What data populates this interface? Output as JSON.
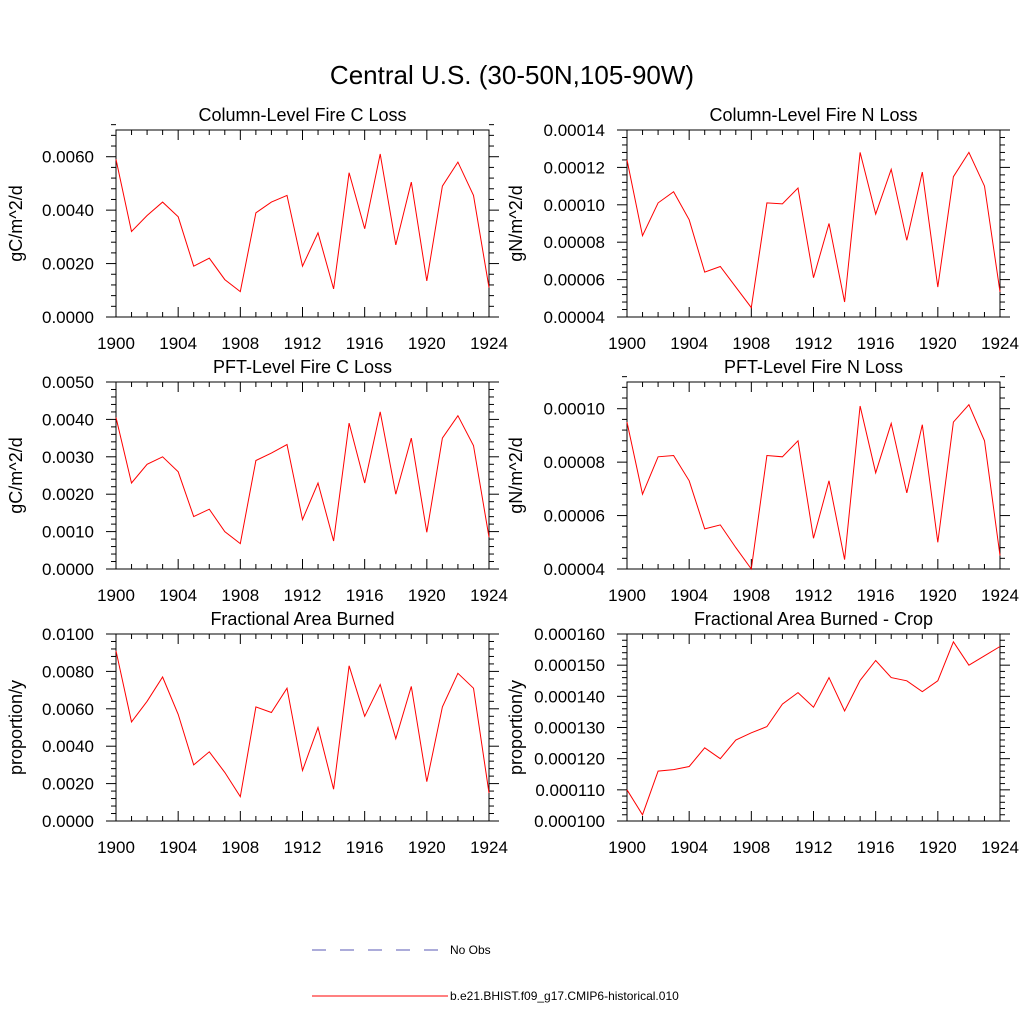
{
  "figure": {
    "title": "Central U.S. (30-50N,105-90W)",
    "line_color": "#ff0000",
    "obs_color": "#5a5ab4"
  },
  "legend": {
    "placement": "bottom-center",
    "items": [
      {
        "label": "No Obs",
        "style": "dashed",
        "color": "#5a5ab4"
      },
      {
        "label": "b.e21.BHIST.f09_g17.CMIP6-historical.010",
        "style": "solid",
        "color": "#ff0000"
      }
    ]
  },
  "chart_data": [
    {
      "type": "line",
      "title": "Column-Level Fire C Loss",
      "ylabel": "gC/m^2/d",
      "xlabel": "",
      "xlim": [
        1900,
        1924
      ],
      "ylim": [
        0,
        0.007
      ],
      "xticks": [
        "1900",
        "1904",
        "1908",
        "1912",
        "1916",
        "1920",
        "1924"
      ],
      "yticks": [
        "0.0000",
        "0.0020",
        "0.0040",
        "0.0060"
      ],
      "x": [
        1900,
        1901,
        1902,
        1903,
        1904,
        1905,
        1906,
        1907,
        1908,
        1909,
        1910,
        1911,
        1912,
        1913,
        1914,
        1915,
        1916,
        1917,
        1918,
        1919,
        1920,
        1921,
        1922,
        1923,
        1924
      ],
      "series": [
        {
          "name": "b.e21.BHIST.f09_g17.CMIP6-historical.010",
          "values": [
            0.0059,
            0.0032,
            0.0038,
            0.0043,
            0.00375,
            0.0019,
            0.0022,
            0.0014,
            0.00095,
            0.0039,
            0.0043,
            0.00455,
            0.0019,
            0.00315,
            0.00105,
            0.0054,
            0.0033,
            0.0061,
            0.0027,
            0.00505,
            0.00135,
            0.0049,
            0.0058,
            0.00455,
            0.0011
          ]
        }
      ]
    },
    {
      "type": "line",
      "title": "Column-Level Fire N Loss",
      "ylabel": "gN/m^2/d",
      "xlabel": "",
      "xlim": [
        1900,
        1924
      ],
      "ylim": [
        4e-05,
        0.00014
      ],
      "xticks": [
        "1900",
        "1904",
        "1908",
        "1912",
        "1916",
        "1920",
        "1924"
      ],
      "yticks": [
        "0.00004",
        "0.00006",
        "0.00008",
        "0.00010",
        "0.00012",
        "0.00014"
      ],
      "x": [
        1900,
        1901,
        1902,
        1903,
        1904,
        1905,
        1906,
        1907,
        1908,
        1909,
        1910,
        1911,
        1912,
        1913,
        1914,
        1915,
        1916,
        1917,
        1918,
        1919,
        1920,
        1921,
        1922,
        1923,
        1924
      ],
      "series": [
        {
          "name": "b.e21.BHIST.f09_g17.CMIP6-historical.010",
          "values": [
            0.000124,
            8.35e-05,
            0.000101,
            0.000107,
            9.2e-05,
            6.4e-05,
            6.7e-05,
            5.6e-05,
            4.5e-05,
            0.000101,
            0.0001005,
            0.000109,
            6.1e-05,
            9e-05,
            4.8e-05,
            0.000128,
            9.5e-05,
            0.000119,
            8.1e-05,
            0.0001175,
            5.6e-05,
            0.000115,
            0.000128,
            0.00011,
            5.35e-05
          ]
        }
      ]
    },
    {
      "type": "line",
      "title": "PFT-Level Fire C Loss",
      "ylabel": "gC/m^2/d",
      "xlabel": "",
      "xlim": [
        1900,
        1924
      ],
      "ylim": [
        0,
        0.005
      ],
      "xticks": [
        "1900",
        "1904",
        "1908",
        "1912",
        "1916",
        "1920",
        "1924"
      ],
      "yticks": [
        "0.0000",
        "0.0010",
        "0.0020",
        "0.0030",
        "0.0040",
        "0.0050"
      ],
      "x": [
        1900,
        1901,
        1902,
        1903,
        1904,
        1905,
        1906,
        1907,
        1908,
        1909,
        1910,
        1911,
        1912,
        1913,
        1914,
        1915,
        1916,
        1917,
        1918,
        1919,
        1920,
        1921,
        1922,
        1923,
        1924
      ],
      "series": [
        {
          "name": "b.e21.BHIST.f09_g17.CMIP6-historical.010",
          "values": [
            0.00405,
            0.0023,
            0.0028,
            0.003,
            0.0026,
            0.0014,
            0.0016,
            0.001,
            0.00068,
            0.0029,
            0.0031,
            0.00333,
            0.00132,
            0.0023,
            0.00075,
            0.0039,
            0.0023,
            0.0042,
            0.002,
            0.0035,
            0.00098,
            0.0035,
            0.0041,
            0.0033,
            0.00085
          ]
        }
      ]
    },
    {
      "type": "line",
      "title": "PFT-Level Fire N Loss",
      "ylabel": "gN/m^2/d",
      "xlabel": "",
      "xlim": [
        1900,
        1924
      ],
      "ylim": [
        4e-05,
        0.00011
      ],
      "xticks": [
        "1900",
        "1904",
        "1908",
        "1912",
        "1916",
        "1920",
        "1924"
      ],
      "yticks": [
        "0.00004",
        "0.00006",
        "0.00008",
        "0.00010"
      ],
      "x": [
        1900,
        1901,
        1902,
        1903,
        1904,
        1905,
        1906,
        1907,
        1908,
        1909,
        1910,
        1911,
        1912,
        1913,
        1914,
        1915,
        1916,
        1917,
        1918,
        1919,
        1920,
        1921,
        1922,
        1923,
        1924
      ],
      "series": [
        {
          "name": "b.e21.BHIST.f09_g17.CMIP6-historical.010",
          "values": [
            9.5e-05,
            6.8e-05,
            8.2e-05,
            8.25e-05,
            7.3e-05,
            5.5e-05,
            5.65e-05,
            4.8e-05,
            4e-05,
            8.25e-05,
            8.2e-05,
            8.8e-05,
            5.15e-05,
            7.3e-05,
            4.35e-05,
            0.000101,
            7.6e-05,
            9.45e-05,
            6.85e-05,
            9.4e-05,
            5e-05,
            9.5e-05,
            0.0001015,
            8.8e-05,
            4.5e-05
          ]
        }
      ]
    },
    {
      "type": "line",
      "title": "Fractional Area Burned",
      "ylabel": "proportion/y",
      "xlabel": "",
      "xlim": [
        1900,
        1924
      ],
      "ylim": [
        0,
        0.01
      ],
      "xticks": [
        "1900",
        "1904",
        "1908",
        "1912",
        "1916",
        "1920",
        "1924"
      ],
      "yticks": [
        "0.0000",
        "0.0020",
        "0.0040",
        "0.0060",
        "0.0080",
        "0.0100"
      ],
      "x": [
        1900,
        1901,
        1902,
        1903,
        1904,
        1905,
        1906,
        1907,
        1908,
        1909,
        1910,
        1911,
        1912,
        1913,
        1914,
        1915,
        1916,
        1917,
        1918,
        1919,
        1920,
        1921,
        1922,
        1923,
        1924
      ],
      "series": [
        {
          "name": "b.e21.BHIST.f09_g17.CMIP6-historical.010",
          "values": [
            0.0091,
            0.0053,
            0.0064,
            0.0077,
            0.0057,
            0.003,
            0.0037,
            0.0026,
            0.0013,
            0.0061,
            0.0058,
            0.0071,
            0.0027,
            0.005,
            0.0017,
            0.0083,
            0.0056,
            0.0073,
            0.0044,
            0.0072,
            0.0021,
            0.0061,
            0.0079,
            0.0071,
            0.0015
          ]
        }
      ]
    },
    {
      "type": "line",
      "title": "Fractional Area Burned - Crop",
      "ylabel": "proportion/y",
      "xlabel": "",
      "xlim": [
        1900,
        1924
      ],
      "ylim": [
        0.0001,
        0.00016
      ],
      "xticks": [
        "1900",
        "1904",
        "1908",
        "1912",
        "1916",
        "1920",
        "1924"
      ],
      "yticks": [
        "0.000100",
        "0.000110",
        "0.000120",
        "0.000130",
        "0.000140",
        "0.000150",
        "0.000160"
      ],
      "x": [
        1900,
        1901,
        1902,
        1903,
        1904,
        1905,
        1906,
        1907,
        1908,
        1909,
        1910,
        1911,
        1912,
        1913,
        1914,
        1915,
        1916,
        1917,
        1918,
        1919,
        1920,
        1921,
        1922,
        1923,
        1924
      ],
      "series": [
        {
          "name": "b.e21.BHIST.f09_g17.CMIP6-historical.010",
          "values": [
            0.00011,
            0.000102,
            0.000116,
            0.0001165,
            0.0001175,
            0.0001235,
            0.00012,
            0.000126,
            0.0001283,
            0.0001303,
            0.0001375,
            0.0001412,
            0.0001365,
            0.000146,
            0.0001353,
            0.0001451,
            0.0001515,
            0.000146,
            0.000145,
            0.0001415,
            0.000145,
            0.0001575,
            0.00015,
            0.000153,
            0.000156
          ]
        }
      ]
    }
  ]
}
